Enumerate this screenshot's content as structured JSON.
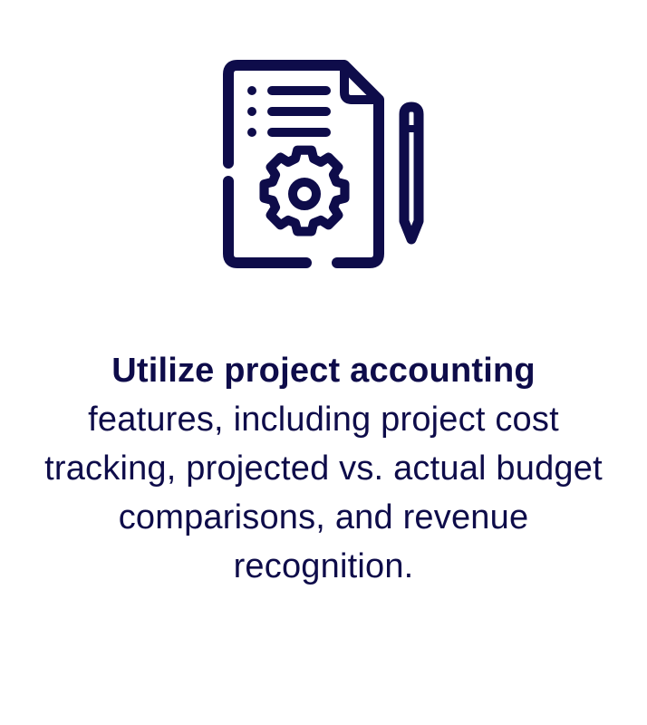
{
  "colors": {
    "ink": "#0e0c4a",
    "background": "#ffffff"
  },
  "icon": {
    "name": "document-settings-pencil-icon"
  },
  "caption": {
    "lead": "Utilize project accounting",
    "body": "features, including project cost tracking, projected vs. actual budget comparisons, and revenue recognition."
  }
}
